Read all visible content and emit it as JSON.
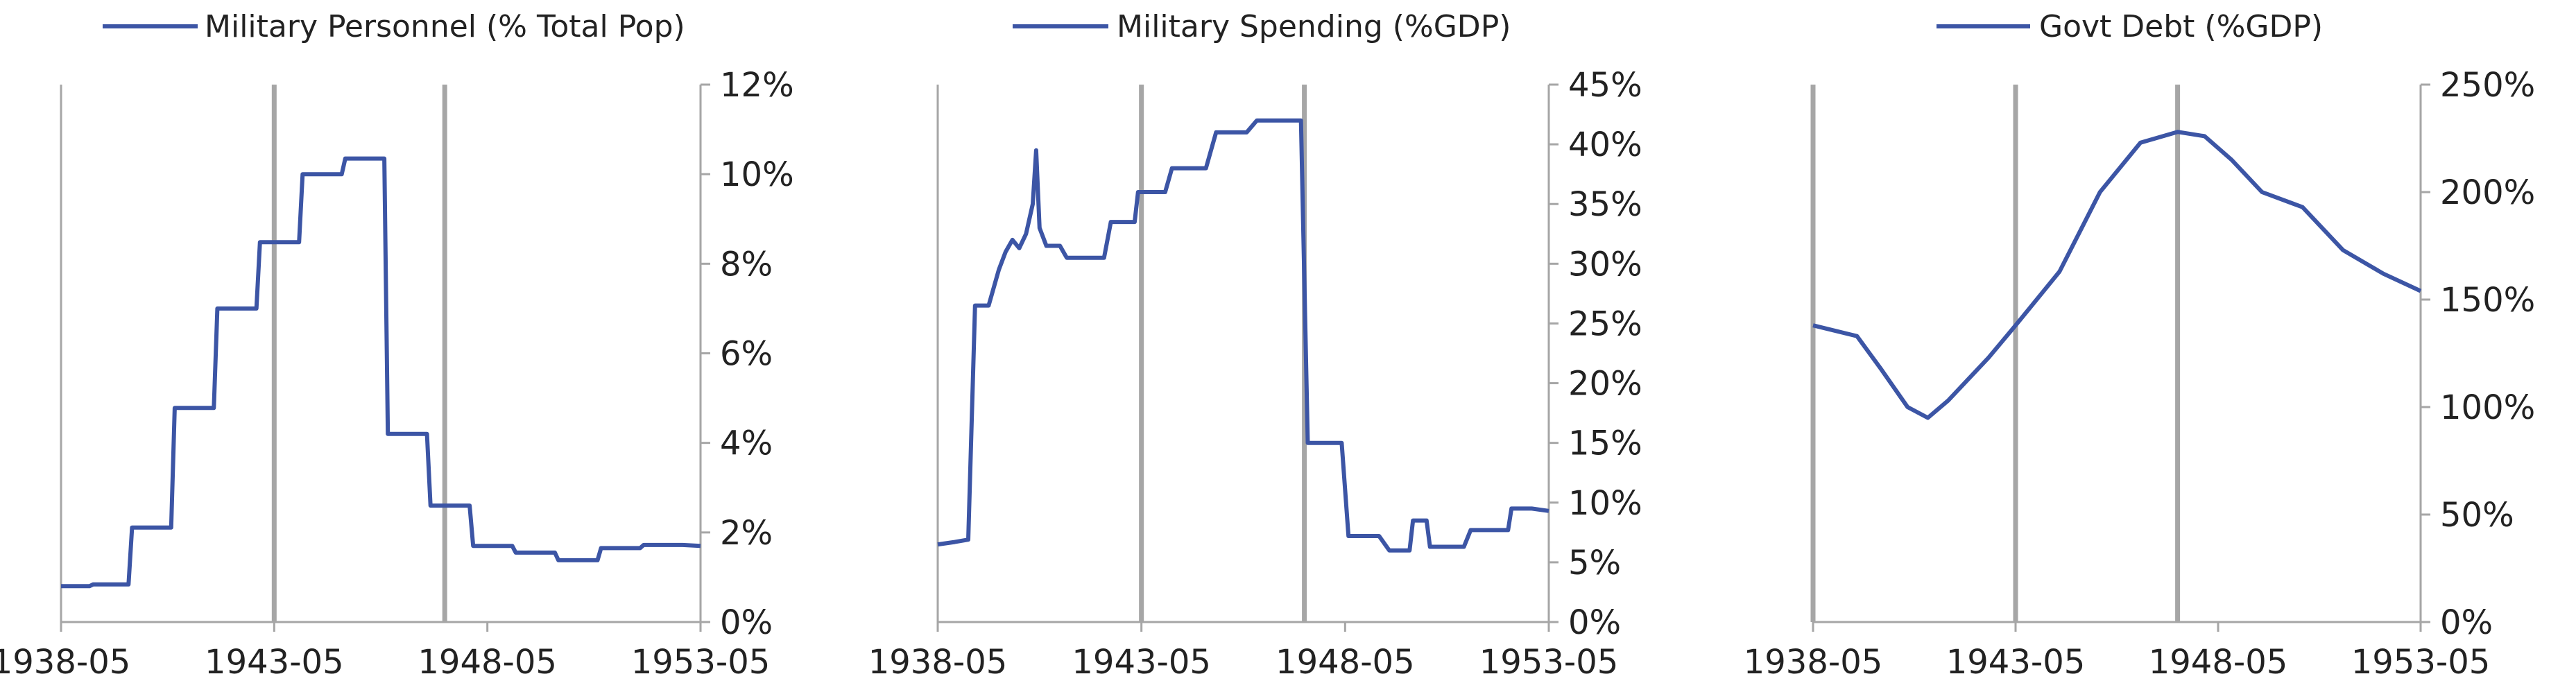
{
  "theme": {
    "line_color": "#3c55a5",
    "axis_color": "#a6a6a6",
    "text_color": "#222222"
  },
  "chart_data": [
    {
      "type": "line",
      "legend_position": "top",
      "series": [
        {
          "name": "Military Personnel (% Total Pop)",
          "points": [
            [
              "1938-05",
              0.8
            ],
            [
              "1939-01",
              0.8
            ],
            [
              "1939-02",
              0.84
            ],
            [
              "1939-12",
              0.84
            ],
            [
              "1940-01",
              2.11
            ],
            [
              "1940-12",
              2.11
            ],
            [
              "1941-01",
              4.78
            ],
            [
              "1941-12",
              4.78
            ],
            [
              "1942-01",
              7.0
            ],
            [
              "1942-12",
              7.0
            ],
            [
              "1943-01",
              8.48
            ],
            [
              "1943-12",
              8.48
            ],
            [
              "1944-01",
              10.0
            ],
            [
              "1944-12",
              10.0
            ],
            [
              "1945-01",
              10.35
            ],
            [
              "1945-12",
              10.35
            ],
            [
              "1946-01",
              4.2
            ],
            [
              "1946-12",
              4.2
            ],
            [
              "1947-01",
              2.6
            ],
            [
              "1947-12",
              2.6
            ],
            [
              "1948-01",
              1.7
            ],
            [
              "1948-12",
              1.7
            ],
            [
              "1949-01",
              1.55
            ],
            [
              "1949-12",
              1.55
            ],
            [
              "1950-01",
              1.38
            ],
            [
              "1950-12",
              1.38
            ],
            [
              "1951-01",
              1.65
            ],
            [
              "1951-12",
              1.65
            ],
            [
              "1952-01",
              1.72
            ],
            [
              "1952-12",
              1.72
            ],
            [
              "1953-05",
              1.7
            ]
          ]
        }
      ],
      "x_range": [
        "1938-05",
        "1953-05"
      ],
      "x_ticks": [
        "1938-05",
        "1943-05",
        "1948-05",
        "1953-05"
      ],
      "y_range": [
        0,
        12
      ],
      "y_ticks": [
        "0%",
        "2%",
        "4%",
        "6%",
        "8%",
        "10%",
        "12%"
      ],
      "y_axis_side": "right",
      "y_unit": "%",
      "vertical_markers": [
        "1943-05",
        "1947-05"
      ]
    },
    {
      "type": "line",
      "legend_position": "top",
      "series": [
        {
          "name": "Military Spending (%GDP)",
          "points": [
            [
              "1938-05",
              6.5
            ],
            [
              "1938-10",
              6.7
            ],
            [
              "1939-02",
              6.9
            ],
            [
              "1939-04",
              26.5
            ],
            [
              "1939-08",
              26.5
            ],
            [
              "1939-11",
              29.5
            ],
            [
              "1940-01",
              31.0
            ],
            [
              "1940-03",
              32.0
            ],
            [
              "1940-05",
              31.3
            ],
            [
              "1940-07",
              32.5
            ],
            [
              "1940-09",
              35.0
            ],
            [
              "1940-10",
              39.5
            ],
            [
              "1940-11",
              33.0
            ],
            [
              "1941-01",
              31.5
            ],
            [
              "1941-05",
              31.5
            ],
            [
              "1941-07",
              30.5
            ],
            [
              "1941-12",
              30.5
            ],
            [
              "1942-06",
              30.5
            ],
            [
              "1942-08",
              33.5
            ],
            [
              "1942-12",
              33.5
            ],
            [
              "1943-03",
              33.5
            ],
            [
              "1943-04",
              36.0
            ],
            [
              "1943-12",
              36.0
            ],
            [
              "1944-02",
              38.0
            ],
            [
              "1944-12",
              38.0
            ],
            [
              "1945-03",
              41.0
            ],
            [
              "1945-12",
              41.0
            ],
            [
              "1946-03",
              42.0
            ],
            [
              "1946-12",
              42.0
            ],
            [
              "1947-04",
              42.0
            ],
            [
              "1947-06",
              15.0
            ],
            [
              "1947-12",
              15.0
            ],
            [
              "1948-04",
              15.0
            ],
            [
              "1948-06",
              7.2
            ],
            [
              "1948-12",
              7.2
            ],
            [
              "1949-03",
              7.2
            ],
            [
              "1949-06",
              6.0
            ],
            [
              "1949-12",
              6.0
            ],
            [
              "1950-01",
              8.5
            ],
            [
              "1950-05",
              8.5
            ],
            [
              "1950-06",
              6.3
            ],
            [
              "1950-12",
              6.3
            ],
            [
              "1951-04",
              6.3
            ],
            [
              "1951-06",
              7.7
            ],
            [
              "1951-12",
              7.7
            ],
            [
              "1952-05",
              7.7
            ],
            [
              "1952-06",
              9.5
            ],
            [
              "1952-12",
              9.5
            ],
            [
              "1953-05",
              9.3
            ]
          ]
        }
      ],
      "x_range": [
        "1938-05",
        "1953-05"
      ],
      "x_ticks": [
        "1938-05",
        "1943-05",
        "1948-05",
        "1953-05"
      ],
      "y_range": [
        0,
        45
      ],
      "y_ticks": [
        "0%",
        "5%",
        "10%",
        "15%",
        "20%",
        "25%",
        "30%",
        "35%",
        "40%",
        "45%"
      ],
      "y_axis_side": "right",
      "y_unit": "%",
      "vertical_markers": [
        "1943-05",
        "1947-05"
      ]
    },
    {
      "type": "line",
      "legend_position": "top",
      "series": [
        {
          "name": "Govt Debt (%GDP)",
          "points": [
            [
              "1938-05",
              138
            ],
            [
              "1939-06",
              133
            ],
            [
              "1940-01",
              118
            ],
            [
              "1940-09",
              100
            ],
            [
              "1941-03",
              95
            ],
            [
              "1941-09",
              103
            ],
            [
              "1942-09",
              123
            ],
            [
              "1943-05",
              138
            ],
            [
              "1944-06",
              163
            ],
            [
              "1945-06",
              200
            ],
            [
              "1946-06",
              223
            ],
            [
              "1947-05",
              228
            ],
            [
              "1948-01",
              226
            ],
            [
              "1948-09",
              215
            ],
            [
              "1949-06",
              200
            ],
            [
              "1950-06",
              193
            ],
            [
              "1951-06",
              173
            ],
            [
              "1952-06",
              162
            ],
            [
              "1953-05",
              154
            ]
          ]
        }
      ],
      "x_range": [
        "1938-05",
        "1953-05"
      ],
      "x_ticks": [
        "1938-05",
        "1943-05",
        "1948-05",
        "1953-05"
      ],
      "y_range": [
        0,
        250
      ],
      "y_ticks": [
        "0%",
        "50%",
        "100%",
        "150%",
        "200%",
        "250%"
      ],
      "y_axis_side": "right",
      "y_unit": "%",
      "vertical_markers": [
        "1938-05",
        "1943-05",
        "1947-05"
      ]
    }
  ]
}
